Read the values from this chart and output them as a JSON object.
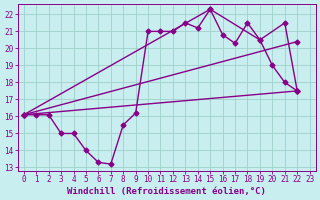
{
  "background_color": "#c8eef0",
  "grid_color": "#a0cfc8",
  "line_color": "#880088",
  "markersize": 2.5,
  "linewidth": 1.0,
  "xlabel": "Windchill (Refroidissement éolien,°C)",
  "xlabel_fontsize": 6.5,
  "tick_fontsize": 5.5,
  "xlim": [
    -0.5,
    23.5
  ],
  "ylim": [
    12.8,
    22.6
  ],
  "yticks": [
    13,
    14,
    15,
    16,
    17,
    18,
    19,
    20,
    21,
    22
  ],
  "xticks": [
    0,
    1,
    2,
    3,
    4,
    5,
    6,
    7,
    8,
    9,
    10,
    11,
    12,
    13,
    14,
    15,
    16,
    17,
    18,
    19,
    20,
    21,
    22,
    23
  ],
  "line1_x": [
    0,
    1,
    2,
    3,
    4,
    5,
    6,
    7,
    8,
    9,
    10,
    11,
    12,
    13,
    14,
    15,
    16,
    17,
    18,
    19,
    20,
    21,
    22
  ],
  "line1_y": [
    16.1,
    16.1,
    16.1,
    15.0,
    15.0,
    14.0,
    13.3,
    13.2,
    15.5,
    16.2,
    21.0,
    21.0,
    21.0,
    21.5,
    21.2,
    22.3,
    20.8,
    20.3,
    21.5,
    20.5,
    19.0,
    18.0,
    17.5
  ],
  "line2_x": [
    0,
    22
  ],
  "line2_y": [
    16.1,
    17.5
  ],
  "line3_x": [
    0,
    22
  ],
  "line3_y": [
    16.1,
    20.4
  ],
  "line4_x": [
    0,
    15,
    19,
    21,
    22
  ],
  "line4_y": [
    16.1,
    22.3,
    20.5,
    21.5,
    17.5
  ]
}
